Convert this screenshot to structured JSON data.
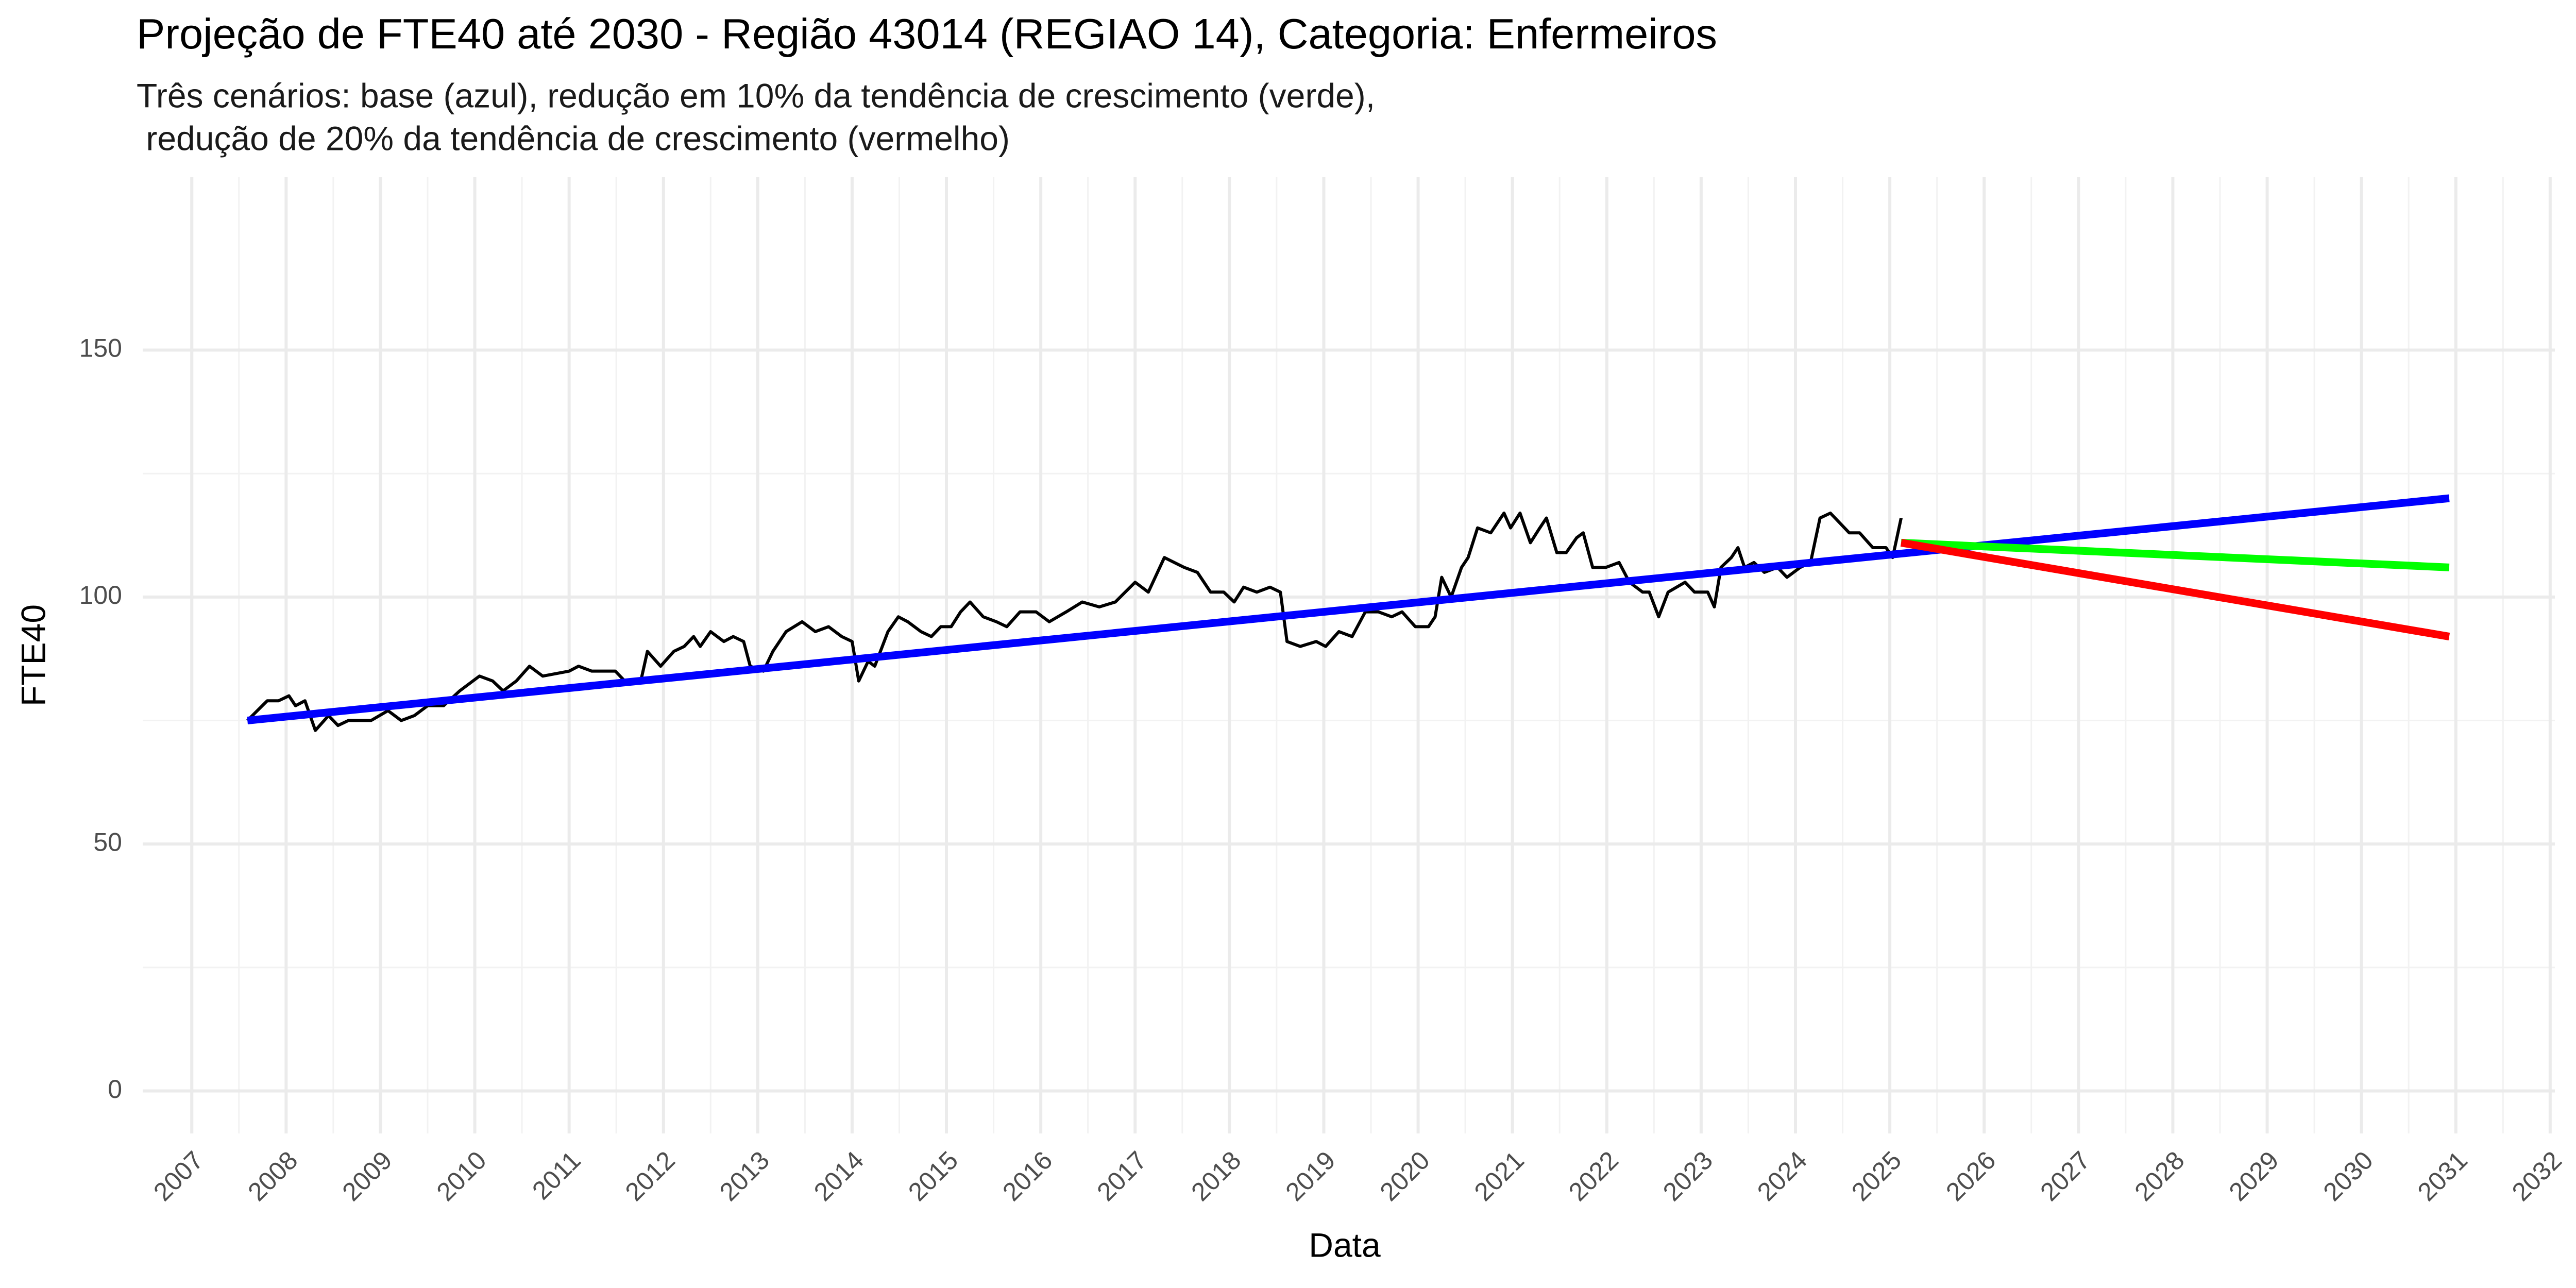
{
  "chart_data": {
    "type": "line",
    "title": "Projeção de FTE40 até 2030 - Região 43014 (REGIAO 14), Categoria: Enfermeiros",
    "subtitle": [
      "Três cenários: base (azul), redução em 10% da tendência de crescimento (verde),",
      " redução de 20% da tendência de crescimento (vermelho)"
    ],
    "x_label": "Data",
    "y_label": "FTE40",
    "xlim": [
      2006.48,
      2032.05
    ],
    "ylim": [
      -8.6,
      185
    ],
    "xticks": [
      2007,
      2008,
      2009,
      2010,
      2011,
      2012,
      2013,
      2014,
      2015,
      2016,
      2017,
      2018,
      2019,
      2020,
      2021,
      2022,
      2023,
      2024,
      2025,
      2026,
      2027,
      2028,
      2029,
      2030,
      2031,
      2032
    ],
    "yticks": [
      0,
      50,
      100,
      150
    ],
    "grid": true,
    "series": [
      {
        "color": "#000000",
        "width": 6,
        "x": [
          2007.59,
          2007.8,
          2007.92,
          2008.03,
          2008.1,
          2008.2,
          2008.31,
          2008.45,
          2008.55,
          2008.66,
          2008.9,
          2009.08,
          2009.22,
          2009.36,
          2009.5,
          2009.67,
          2009.84,
          2010.05,
          2010.19,
          2010.3,
          2010.44,
          2010.58,
          2010.72,
          2011.0,
          2011.1,
          2011.24,
          2011.49,
          2011.59,
          2011.76,
          2011.83,
          2011.97,
          2012.11,
          2012.22,
          2012.32,
          2012.39,
          2012.5,
          2012.64,
          2012.74,
          2012.85,
          2012.92,
          2013.06,
          2013.16,
          2013.3,
          2013.47,
          2013.61,
          2013.75,
          2013.89,
          2014.0,
          2014.07,
          2014.17,
          2014.24,
          2014.38,
          2014.49,
          2014.59,
          2014.73,
          2014.84,
          2014.94,
          2015.05,
          2015.15,
          2015.25,
          2015.39,
          2015.53,
          2015.64,
          2015.78,
          2015.95,
          2016.09,
          2016.27,
          2016.44,
          2016.62,
          2016.79,
          2017.0,
          2017.14,
          2017.31,
          2017.52,
          2017.66,
          2017.8,
          2017.94,
          2018.05,
          2018.15,
          2018.29,
          2018.43,
          2018.54,
          2018.61,
          2018.75,
          2018.92,
          2019.02,
          2019.16,
          2019.3,
          2019.44,
          2019.58,
          2019.72,
          2019.83,
          2019.97,
          2020.11,
          2020.18,
          2020.25,
          2020.35,
          2020.46,
          2020.53,
          2020.63,
          2020.77,
          2020.91,
          2020.98,
          2021.08,
          2021.19,
          2021.29,
          2021.36,
          2021.47,
          2021.57,
          2021.68,
          2021.75,
          2021.85,
          2021.99,
          2022.13,
          2022.24,
          2022.38,
          2022.45,
          2022.55,
          2022.65,
          2022.83,
          2022.93,
          2023.07,
          2023.14,
          2023.21,
          2023.32,
          2023.39,
          2023.46,
          2023.56,
          2023.67,
          2023.81,
          2023.91,
          2024.05,
          2024.16,
          2024.26,
          2024.37,
          2024.47,
          2024.57,
          2024.68,
          2024.82,
          2024.96,
          2025.03,
          2025.12
        ],
        "values": [
          75,
          79,
          79,
          80,
          78,
          79,
          73,
          76,
          74,
          75,
          75,
          77,
          75,
          76,
          78,
          78,
          81,
          84,
          83,
          81,
          83,
          86,
          84,
          85,
          86,
          85,
          85,
          83,
          83,
          89,
          86,
          89,
          90,
          92,
          90,
          93,
          91,
          92,
          91,
          86,
          85,
          89,
          93,
          95,
          93,
          94,
          92,
          91,
          83,
          87,
          86,
          93,
          96,
          95,
          93,
          92,
          94,
          94,
          97,
          99,
          96,
          95,
          94,
          97,
          97,
          95,
          97,
          99,
          98,
          99,
          103,
          101,
          108,
          106,
          105,
          101,
          101,
          99,
          102,
          101,
          102,
          101,
          91,
          90,
          91,
          90,
          93,
          92,
          97,
          97,
          96,
          97,
          94,
          94,
          96,
          104,
          100,
          106,
          108,
          114,
          113,
          117,
          114,
          117,
          111,
          114,
          116,
          109,
          109,
          112,
          113,
          106,
          106,
          107,
          103,
          101,
          101,
          96,
          101,
          103,
          101,
          101,
          98,
          106,
          108,
          110,
          106,
          107,
          105,
          106,
          104,
          106,
          107,
          116,
          117,
          115,
          113,
          113,
          110,
          110,
          108,
          116
        ]
      },
      {
        "color": "#0000ff",
        "width": 15,
        "x": [
          2007.59,
          2030.93
        ],
        "values": [
          75,
          120
        ]
      },
      {
        "color": "#00ff00",
        "width": 15,
        "x": [
          2025.12,
          2030.93
        ],
        "values": [
          111,
          106
        ]
      },
      {
        "color": "#ff0000",
        "width": 15,
        "x": [
          2025.12,
          2030.93
        ],
        "values": [
          111,
          92
        ]
      }
    ]
  }
}
